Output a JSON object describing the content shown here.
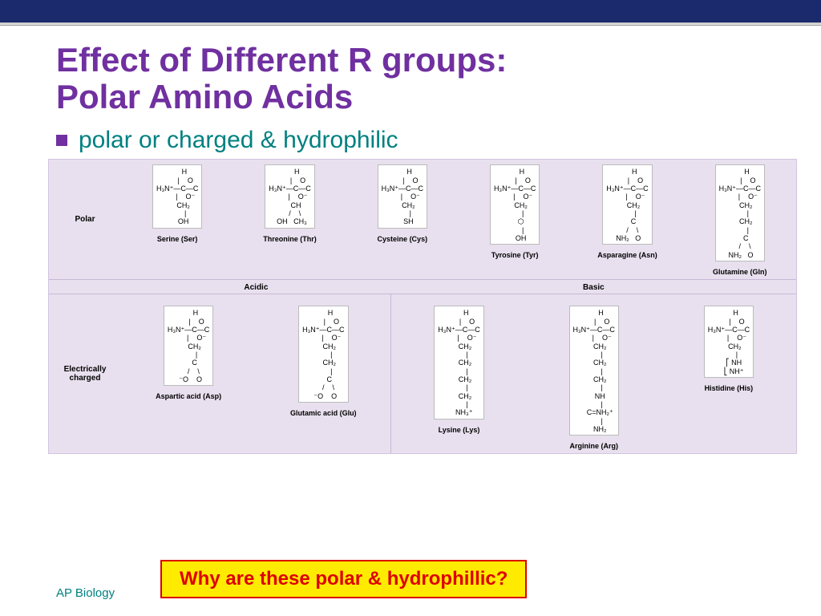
{
  "colors": {
    "topbar": "#1a2a6c",
    "title": "#7030a0",
    "teal": "#008080",
    "panel_bg": "#e8e0ee",
    "panel_border": "#d4c4e0",
    "cell_border": "#c8b8d8",
    "box_bg": "#ffffff",
    "question_bg": "#ffeb00",
    "question_border": "#d00000",
    "question_text": "#d00000"
  },
  "title_line1": "Effect of Different R groups:",
  "title_line2": "Polar Amino Acids",
  "bullet": "polar or charged & hydrophilic",
  "group_headers": {
    "acidic": "Acidic",
    "basic": "Basic"
  },
  "rows": {
    "polar": {
      "label": "Polar",
      "items": [
        {
          "name": "Serine (Ser)",
          "struct": "       H\n        |    O\nH₃N⁺—C—C\n        |    O⁻\n      CH₂\n        |\n      OH"
        },
        {
          "name": "Threonine (Thr)",
          "struct": "       H\n        |    O\nH₃N⁺—C—C\n        |    O⁻\n      CH\n     /    \\\n  OH   CH₃"
        },
        {
          "name": "Cysteine (Cys)",
          "struct": "       H\n        |    O\nH₃N⁺—C—C\n        |    O⁻\n      CH₂\n        |\n      SH"
        },
        {
          "name": "Tyrosine (Tyr)",
          "struct": "       H\n        |    O\nH₃N⁺—C—C\n        |    O⁻\n      CH₂\n        |\n      ⬡\n        |\n      OH"
        },
        {
          "name": "Asparagine (Asn)",
          "struct": "       H\n        |    O\nH₃N⁺—C—C\n        |    O⁻\n      CH₂\n        |\n      C\n     /    \\\n NH₂   O"
        },
        {
          "name": "Glutamine (Gln)",
          "struct": "       H\n        |    O\nH₃N⁺—C—C\n        |    O⁻\n      CH₂\n        |\n      CH₂\n        |\n      C\n     /    \\\n NH₂   O"
        }
      ]
    },
    "charged": {
      "label": "Electrically charged",
      "acidic": [
        {
          "name": "Aspartic acid (Asp)",
          "struct": "       H\n        |    O\nH₃N⁺—C—C\n        |    O⁻\n      CH₂\n        |\n      C\n     /    \\\n  ⁻O    O"
        },
        {
          "name": "Glutamic acid (Glu)",
          "struct": "       H\n        |    O\nH₃N⁺—C—C\n        |    O⁻\n      CH₂\n        |\n      CH₂\n        |\n      C\n     /    \\\n  ⁻O    O"
        }
      ],
      "basic": [
        {
          "name": "Lysine (Lys)",
          "struct": "       H\n        |    O\nH₃N⁺—C—C\n        |    O⁻\n      CH₂\n        |\n      CH₂\n        |\n      CH₂\n        |\n      CH₂\n        |\n     NH₃⁺"
        },
        {
          "name": "Arginine (Arg)",
          "struct": "       H\n        |    O\nH₃N⁺—C—C\n        |    O⁻\n      CH₂\n        |\n      CH₂\n        |\n      CH₂\n        |\n      NH\n        |\n      C=NH₂⁺\n        |\n      NH₂"
        },
        {
          "name": "Histidine (His)",
          "struct": "       H\n        |    O\nH₃N⁺—C—C\n        |    O⁻\n      CH₂\n        |\n     ⎡ NH\n     ⎣ NH⁺"
        }
      ]
    }
  },
  "question": "Why are these polar & hydrophillic?",
  "footer": "AP Biology"
}
